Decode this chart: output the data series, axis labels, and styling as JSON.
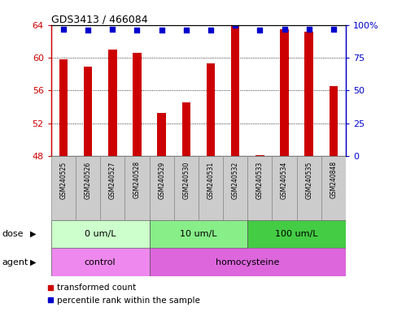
{
  "title": "GDS3413 / 466084",
  "samples": [
    "GSM240525",
    "GSM240526",
    "GSM240527",
    "GSM240528",
    "GSM240529",
    "GSM240530",
    "GSM240531",
    "GSM240532",
    "GSM240533",
    "GSM240534",
    "GSM240535",
    "GSM240848"
  ],
  "transformed_count": [
    59.8,
    58.9,
    61.0,
    60.6,
    53.3,
    54.5,
    59.3,
    64.1,
    48.1,
    63.5,
    63.2,
    56.5
  ],
  "percentile_rank": [
    97,
    96,
    97,
    96,
    96,
    96,
    96,
    100,
    96,
    97,
    97,
    97
  ],
  "bar_color": "#cc0000",
  "dot_color": "#0000cc",
  "ylim_left": [
    48,
    64
  ],
  "yticks_left": [
    48,
    52,
    56,
    60,
    64
  ],
  "ylim_right": [
    0,
    100
  ],
  "yticks_right": [
    0,
    25,
    50,
    75,
    100
  ],
  "dose_groups": [
    {
      "label": "0 um/L",
      "start": 0,
      "end": 4,
      "color": "#ccffcc"
    },
    {
      "label": "10 um/L",
      "start": 4,
      "end": 8,
      "color": "#88ee88"
    },
    {
      "label": "100 um/L",
      "start": 8,
      "end": 12,
      "color": "#44cc44"
    }
  ],
  "agent_groups": [
    {
      "label": "control",
      "start": 0,
      "end": 4,
      "color": "#ee88ee"
    },
    {
      "label": "homocysteine",
      "start": 4,
      "end": 12,
      "color": "#dd66dd"
    }
  ],
  "dose_label": "dose",
  "agent_label": "agent",
  "legend_red_label": "transformed count",
  "legend_blue_label": "percentile rank within the sample",
  "sample_bg_color": "#cccccc",
  "plot_bg_color": "#ffffff",
  "bar_width": 0.35
}
